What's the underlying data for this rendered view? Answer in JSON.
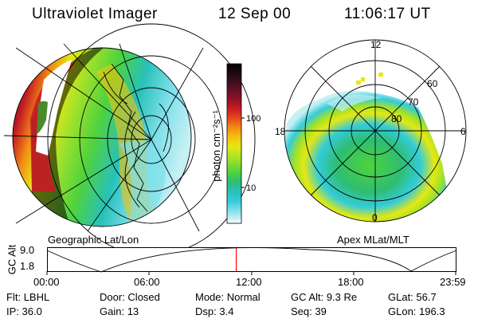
{
  "header": {
    "instrument": "Ultraviolet Imager",
    "date": "12 Sep 00",
    "time": "11:06:17 UT"
  },
  "left_panel": {
    "caption": "Geographic Lat/Lon"
  },
  "right_panel": {
    "caption": "Apex MLat/MLT",
    "mlt_labels": {
      "top": "12",
      "left": "18",
      "right": "6",
      "bottom": "0"
    },
    "lat_labels": [
      "60",
      "70",
      "80"
    ]
  },
  "colorbar": {
    "unit_label": "photon cm⁻²s⁻¹",
    "ticks": [
      "100",
      "10"
    ],
    "colors": [
      "#000000",
      "#2a0b18",
      "#5a0f24",
      "#8d1224",
      "#c51c24",
      "#e5481b",
      "#f28c14",
      "#f5c20e",
      "#e5e812",
      "#9fe12c",
      "#4fd33d",
      "#2ebd73",
      "#27c1b9",
      "#33ccd9",
      "#7fe0ea",
      "#c5f0f4",
      "#ffffff"
    ]
  },
  "timeline": {
    "ylabel": "GC Alt",
    "y_ticks": [
      "9.0",
      "1.8"
    ],
    "x_ticks": [
      "00:00",
      "06:00",
      "12:00",
      "18:00",
      "23:59"
    ],
    "current_time_fraction": 0.462,
    "marker_color": "#ff0000"
  },
  "footer": {
    "row1": [
      {
        "label": "Flt:",
        "value": "LBHL"
      },
      {
        "label": "Door:",
        "value": "Closed"
      },
      {
        "label": "Mode:",
        "value": "Normal"
      },
      {
        "label": "GC Alt:",
        "value": "9.3 Re"
      },
      {
        "label": "GLat:",
        "value": "56.7"
      }
    ],
    "row2": [
      {
        "label": "IP:",
        "value": "36.0"
      },
      {
        "label": "Gain:",
        "value": "13"
      },
      {
        "label": "Dsp:",
        "value": "3.4"
      },
      {
        "label": "Seq:",
        "value": "39"
      },
      {
        "label": "GLon:",
        "value": "196.3"
      }
    ]
  }
}
